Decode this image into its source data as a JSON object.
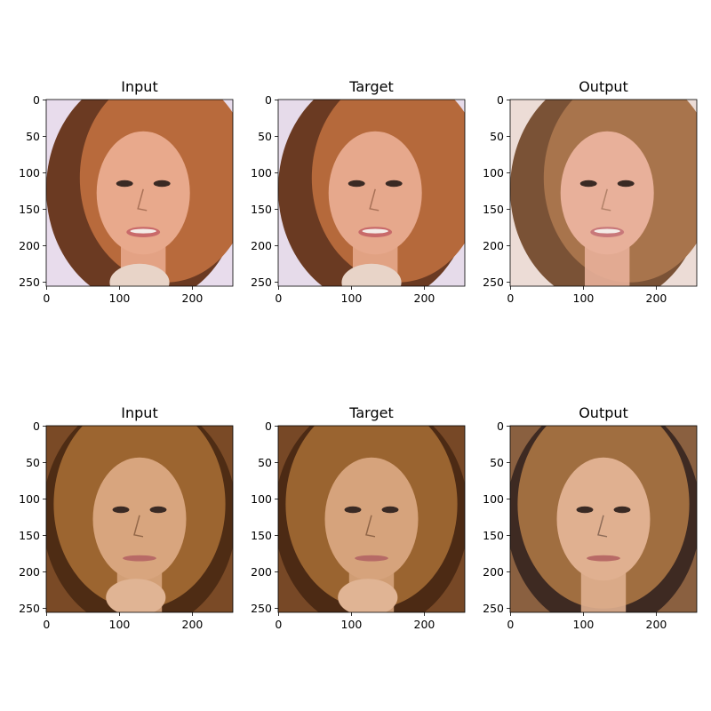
{
  "rows": [
    {
      "panels": [
        {
          "title": "Input",
          "xticks": [
            "0",
            "100",
            "200"
          ],
          "yticks": [
            "0",
            "50",
            "100",
            "150",
            "200",
            "250"
          ],
          "image": {
            "bg": "#e8dcec",
            "hair": "#b86a3c",
            "hair_dark": "#6b3a22",
            "skin": "#e8a98c",
            "lip": "#c96a6a"
          }
        },
        {
          "title": "Target",
          "xticks": [
            "0",
            "100",
            "200"
          ],
          "yticks": [
            "0",
            "50",
            "100",
            "150",
            "200",
            "250"
          ],
          "image": {
            "bg": "#e6dbea",
            "hair": "#b5693b",
            "hair_dark": "#6a3a22",
            "skin": "#e6a88c",
            "lip": "#c86a6a"
          }
        },
        {
          "title": "Output",
          "xticks": [
            "0",
            "100",
            "200"
          ],
          "yticks": [
            "0",
            "50",
            "100",
            "150",
            "200",
            "250"
          ],
          "image": {
            "bg": "#ecdcd6",
            "hair": "#a8744c",
            "hair_dark": "#7a5236",
            "skin": "#e8b09a",
            "lip": "#c8787a"
          }
        }
      ]
    },
    {
      "panels": [
        {
          "title": "Input",
          "xticks": [
            "0",
            "100",
            "200"
          ],
          "yticks": [
            "0",
            "50",
            "100",
            "150",
            "200",
            "250"
          ],
          "image": {
            "bg": "#7a4a26",
            "hair": "#9c6530",
            "hair_dark": "#4e2c14",
            "skin": "#d8a57e",
            "lip": "#b86a66"
          }
        },
        {
          "title": "Target",
          "xticks": [
            "0",
            "100",
            "200"
          ],
          "yticks": [
            "0",
            "50",
            "100",
            "150",
            "200",
            "250"
          ],
          "image": {
            "bg": "#774826",
            "hair": "#9a6430",
            "hair_dark": "#4c2a14",
            "skin": "#d6a37c",
            "lip": "#b66a66"
          }
        },
        {
          "title": "Output",
          "xticks": [
            "0",
            "100",
            "200"
          ],
          "yticks": [
            "0",
            "50",
            "100",
            "150",
            "200",
            "250"
          ],
          "image": {
            "bg": "#8a6040",
            "hair": "#a06e40",
            "hair_dark": "#3e2a22",
            "skin": "#e0b090",
            "lip": "#b86a66"
          }
        }
      ]
    }
  ]
}
